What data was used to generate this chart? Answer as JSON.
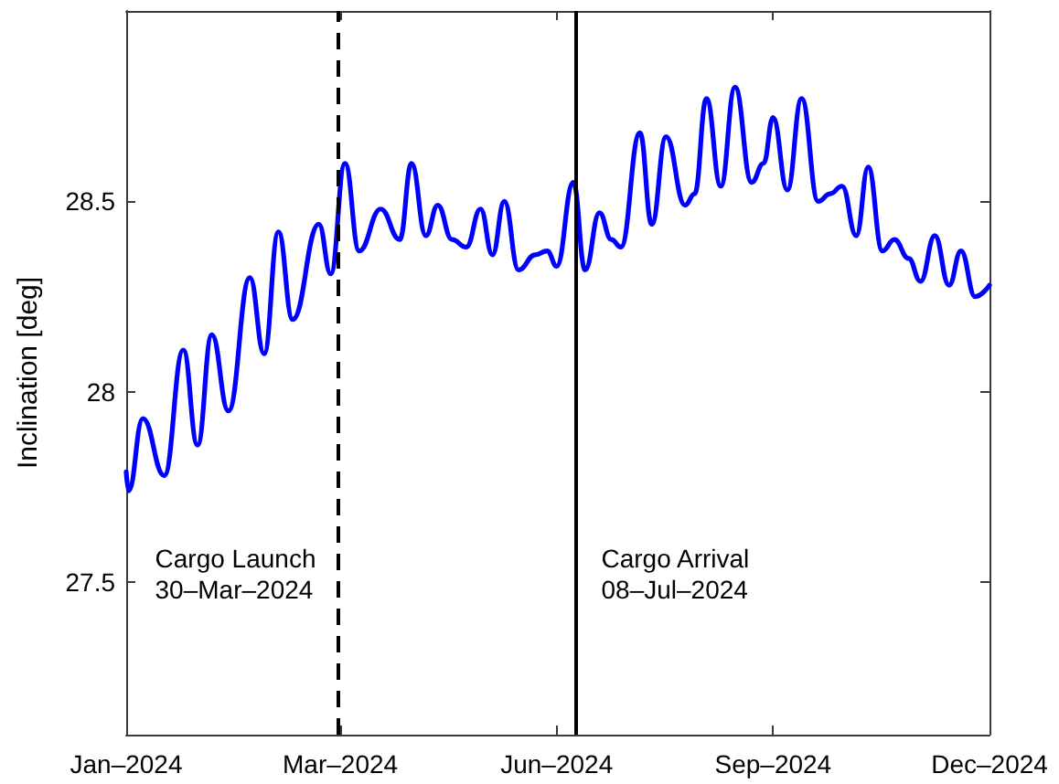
{
  "chart_data": {
    "type": "line",
    "ylabel": "Inclination [deg]",
    "x": [
      "2024-01-01",
      "2024-01-02",
      "2024-01-08",
      "2024-01-17",
      "2024-01-25",
      "2024-01-31",
      "2024-02-06",
      "2024-02-13",
      "2024-02-22",
      "2024-02-28",
      "2024-03-05",
      "2024-03-11",
      "2024-03-22",
      "2024-03-27",
      "2024-04-02",
      "2024-04-08",
      "2024-04-17",
      "2024-04-25",
      "2024-04-30",
      "2024-05-06",
      "2024-05-11",
      "2024-05-17",
      "2024-05-23",
      "2024-05-29",
      "2024-06-03",
      "2024-06-08",
      "2024-06-14",
      "2024-06-21",
      "2024-06-26",
      "2024-06-30",
      "2024-07-07",
      "2024-07-12",
      "2024-07-18",
      "2024-07-23",
      "2024-07-27",
      "2024-08-04",
      "2024-08-09",
      "2024-08-15",
      "2024-08-23",
      "2024-08-27",
      "2024-09-01",
      "2024-09-07",
      "2024-09-13",
      "2024-09-20",
      "2024-09-25",
      "2024-09-29",
      "2024-10-05",
      "2024-10-11",
      "2024-10-18",
      "2024-10-23",
      "2024-10-28",
      "2024-11-03",
      "2024-11-08",
      "2024-11-14",
      "2024-11-19",
      "2024-11-25",
      "2024-11-30",
      "2024-12-06",
      "2024-12-12",
      "2024-12-17",
      "2024-12-23",
      "2024-12-29"
    ],
    "values": [
      27.79,
      27.74,
      27.93,
      27.78,
      28.11,
      27.86,
      28.15,
      27.95,
      28.3,
      28.1,
      28.42,
      28.19,
      28.44,
      28.31,
      28.6,
      28.37,
      28.48,
      28.4,
      28.6,
      28.41,
      28.49,
      28.4,
      28.38,
      28.48,
      28.36,
      28.5,
      28.32,
      28.36,
      28.37,
      28.33,
      28.55,
      28.32,
      28.47,
      28.4,
      28.38,
      28.68,
      28.44,
      28.67,
      28.49,
      28.52,
      28.77,
      28.54,
      28.8,
      28.55,
      28.6,
      28.72,
      28.53,
      28.77,
      28.5,
      28.52,
      28.54,
      28.41,
      28.59,
      28.37,
      28.4,
      28.35,
      28.29,
      28.41,
      28.28,
      28.37,
      28.25,
      28.28
    ],
    "color": "#0000ff",
    "xlim": [
      "2024-01-01",
      "2024-12-29"
    ],
    "xticks": [
      {
        "value": "2024-01-01",
        "label": "Jan–2024"
      },
      {
        "value": "2024-03-31",
        "label": "Mar–2024"
      },
      {
        "value": "2024-06-30",
        "label": "Jun–2024"
      },
      {
        "value": "2024-09-29",
        "label": "Sep–2024"
      },
      {
        "value": "2024-12-29",
        "label": "Dec–2024"
      }
    ],
    "ylim": [
      27.1,
      29.0
    ],
    "yticks": [
      27.5,
      28,
      28.5
    ],
    "ref_lines": [
      {
        "axis": "x",
        "value": "2024-03-30",
        "label": "Cargo Launch\n30–Mar–2024",
        "color": "#000000",
        "line_style": "dashed"
      },
      {
        "axis": "x",
        "value": "2024-07-08",
        "label": "Cargo Arrival\n08–Jul–2024",
        "color": "#000000",
        "line_style": "solid"
      }
    ],
    "grid": false,
    "marker": "none",
    "line_style": "solid"
  }
}
